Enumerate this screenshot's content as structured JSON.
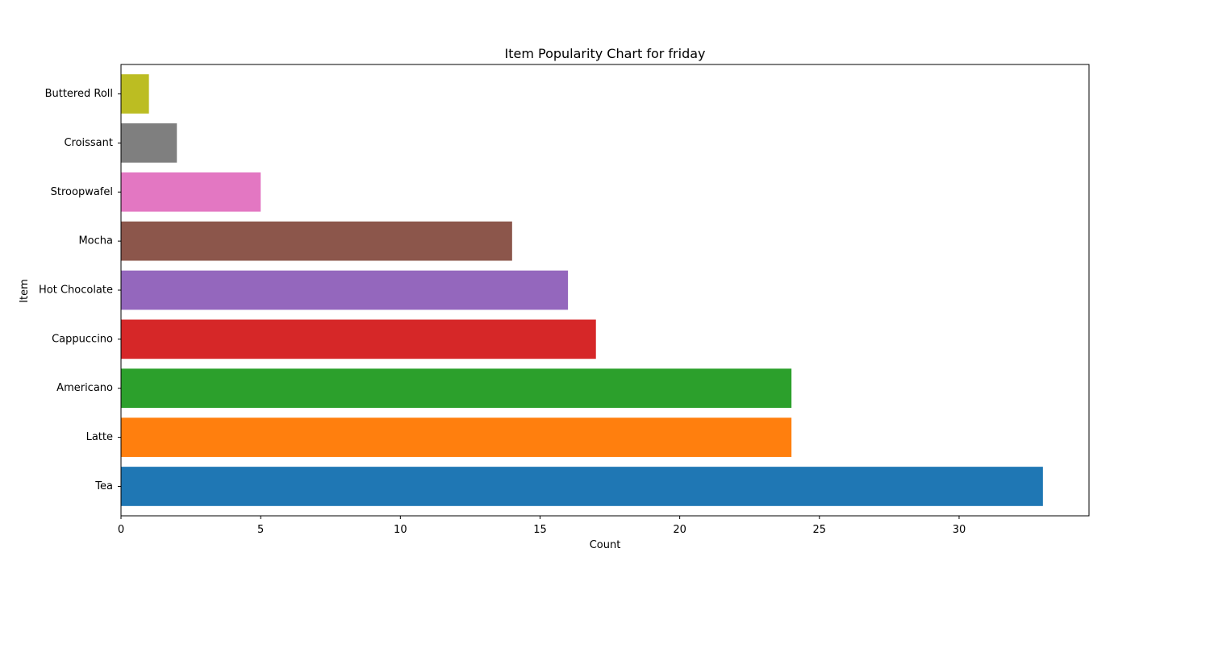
{
  "chart_data": {
    "type": "bar",
    "orientation": "horizontal",
    "title": "Item Popularity Chart for friday",
    "xlabel": "Count",
    "ylabel": "Item",
    "categories": [
      "Tea",
      "Latte",
      "Americano",
      "Cappuccino",
      "Hot Chocolate",
      "Mocha",
      "Stroopwafel",
      "Croissant",
      "Buttered Roll"
    ],
    "values": [
      33,
      24,
      24,
      17,
      16,
      14,
      5,
      2,
      1
    ],
    "colors": [
      "#1f77b4",
      "#ff7f0e",
      "#2ca02c",
      "#d62728",
      "#9467bd",
      "#8c564b",
      "#e377c2",
      "#7f7f7f",
      "#bcbd22"
    ],
    "xlim": [
      0,
      34.65
    ],
    "xticks": [
      0,
      5,
      10,
      15,
      20,
      25,
      30
    ],
    "grid": false,
    "legend": "none"
  }
}
